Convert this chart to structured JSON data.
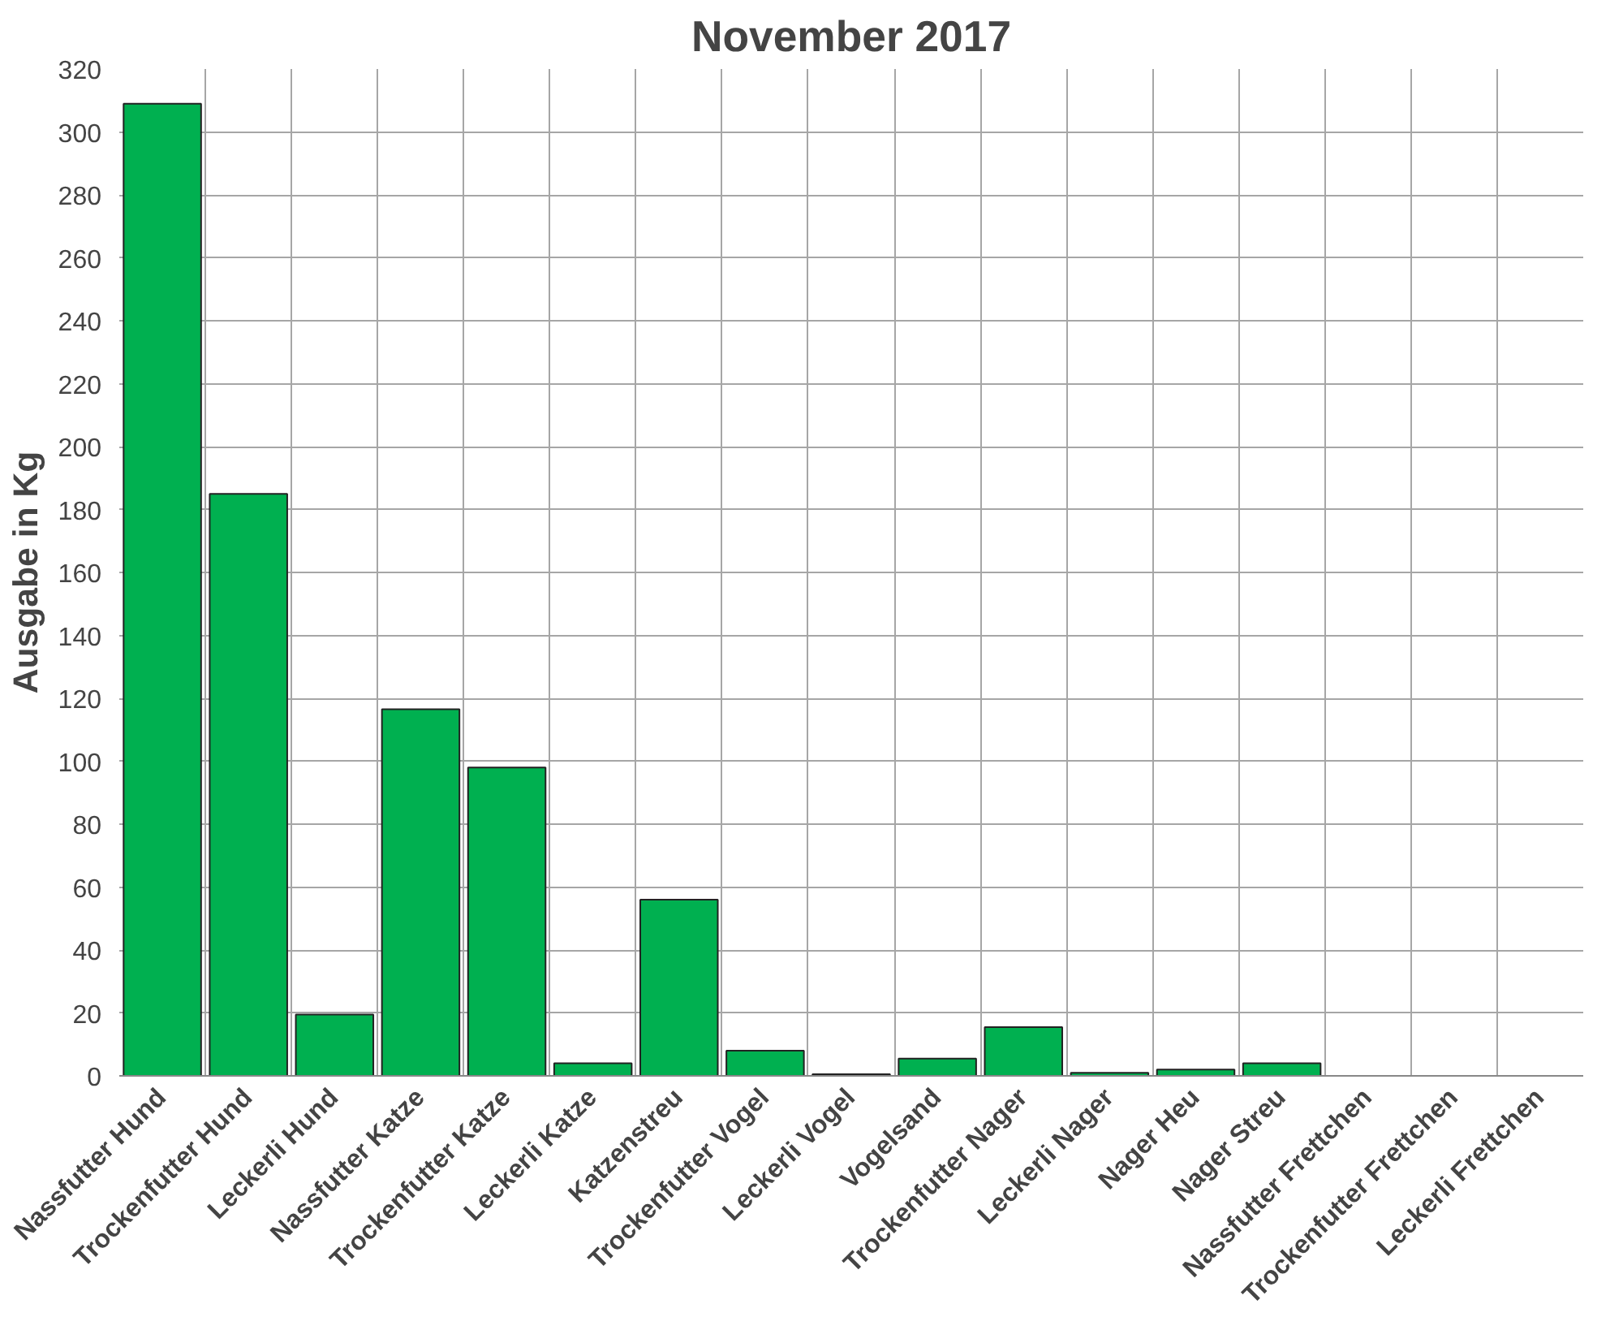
{
  "chart_data": {
    "type": "bar",
    "title": "November 2017",
    "ylabel": "Ausgabe in Kg",
    "categories": [
      "Nassfutter Hund",
      "Trockenfutter Hund",
      "Leckerli Hund",
      "Nassfutter Katze",
      "Trockenfutter Katze",
      "Leckerli Katze",
      "Katzenstreu",
      "Trockenfutter Vogel",
      "Leckerli Vogel",
      "Vogelsand",
      "Trockenfutter Nager",
      "Leckerli Nager",
      "Nager Heu",
      "Nager Streu",
      "Nassfutter Frettchen",
      "Trockenfutter Frettchen",
      "Leckerli Frettchen"
    ],
    "values": [
      309,
      185,
      19.5,
      116.5,
      98,
      4,
      56,
      8,
      0.5,
      5.5,
      15.5,
      1,
      2,
      4,
      0,
      0,
      0
    ],
    "color": "#00b050",
    "ylim": [
      0,
      320
    ],
    "yticks": [
      0,
      20,
      40,
      60,
      80,
      100,
      120,
      140,
      160,
      180,
      200,
      220,
      240,
      260,
      280,
      300,
      320
    ],
    "grid": true
  }
}
